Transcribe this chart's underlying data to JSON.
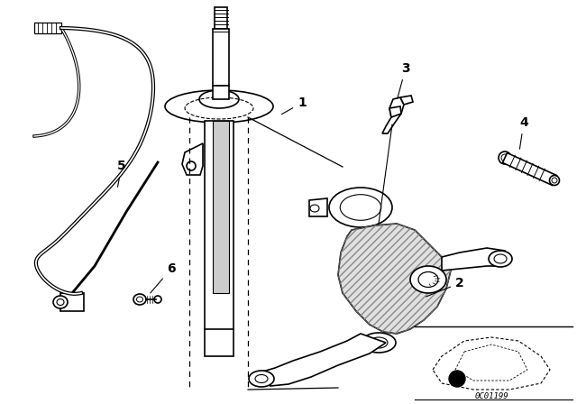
{
  "bg_color": "#ffffff",
  "line_color": "#000000",
  "fig_width": 6.4,
  "fig_height": 4.48,
  "dpi": 100,
  "diagram_code": "0C01199"
}
